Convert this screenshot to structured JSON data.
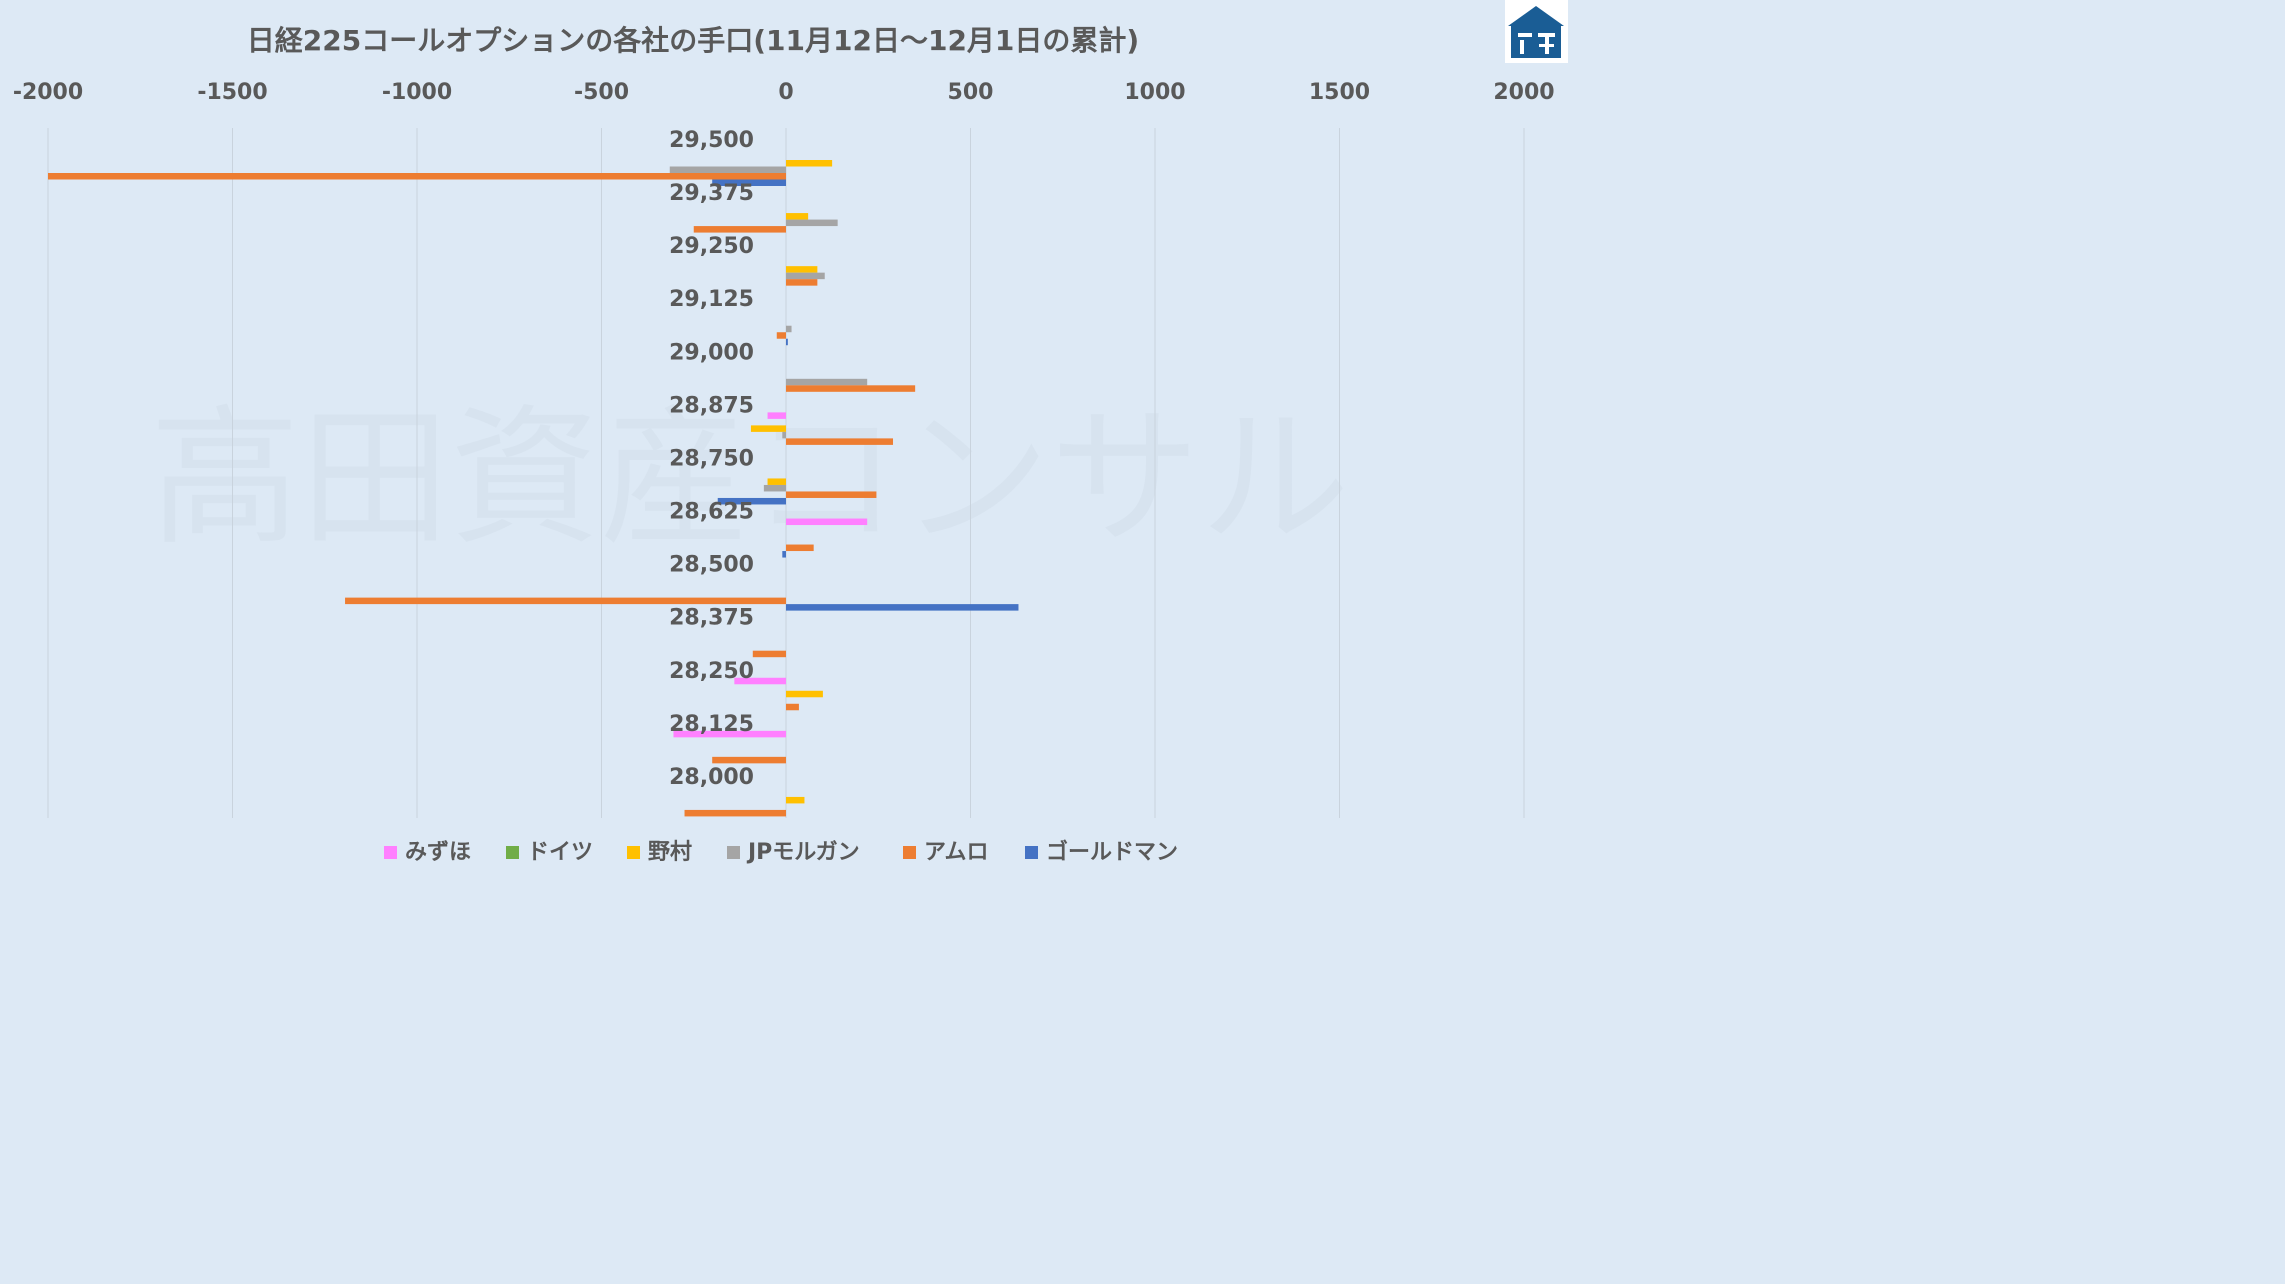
{
  "chart_data": {
    "type": "bar",
    "orientation": "horizontal",
    "title": "日経225コールオプションの各社の手口(11月12日～12月1日の累計)",
    "xlim": [
      -2000,
      2000
    ],
    "xticks": [
      -2000,
      -1500,
      -1000,
      -500,
      0,
      500,
      1000,
      1500,
      2000
    ],
    "x_axis_position": "top",
    "grid": true,
    "legend_position": "bottom",
    "categories": [
      "29,500",
      "29,375",
      "29,250",
      "29,125",
      "29,000",
      "28,875",
      "28,750",
      "28,625",
      "28,500",
      "28,375",
      "28,250",
      "28,125",
      "28,000"
    ],
    "series": [
      {
        "name": "みずほ",
        "color": "#ff80ff",
        "values": [
          0,
          0,
          0,
          0,
          0,
          -50,
          0,
          220,
          0,
          0,
          -140,
          -305,
          0
        ]
      },
      {
        "name": "ドイツ",
        "color": "#70ad47",
        "values": [
          0,
          0,
          0,
          0,
          0,
          0,
          0,
          0,
          0,
          0,
          0,
          0,
          0
        ]
      },
      {
        "name": "野村",
        "color": "#ffc000",
        "values": [
          125,
          60,
          85,
          0,
          0,
          -95,
          -50,
          0,
          0,
          0,
          100,
          0,
          50
        ]
      },
      {
        "name": "JPモルガン",
        "color": "#a5a5a5",
        "values": [
          -315,
          140,
          105,
          15,
          220,
          -10,
          -60,
          0,
          0,
          0,
          0,
          0,
          0
        ]
      },
      {
        "name": "アムロ",
        "color": "#ed7d31",
        "values": [
          -2000,
          -250,
          85,
          -25,
          350,
          290,
          245,
          75,
          -1195,
          -90,
          35,
          -200,
          -275
        ]
      },
      {
        "name": "ゴールドマン",
        "color": "#4472c4",
        "values": [
          -200,
          0,
          0,
          5,
          0,
          0,
          -185,
          -10,
          630,
          0,
          0,
          0,
          0
        ]
      }
    ]
  },
  "watermark_text": "高田資産コンサル",
  "logo": {
    "icon": "house-logo-icon",
    "color": "#1a5d95"
  }
}
